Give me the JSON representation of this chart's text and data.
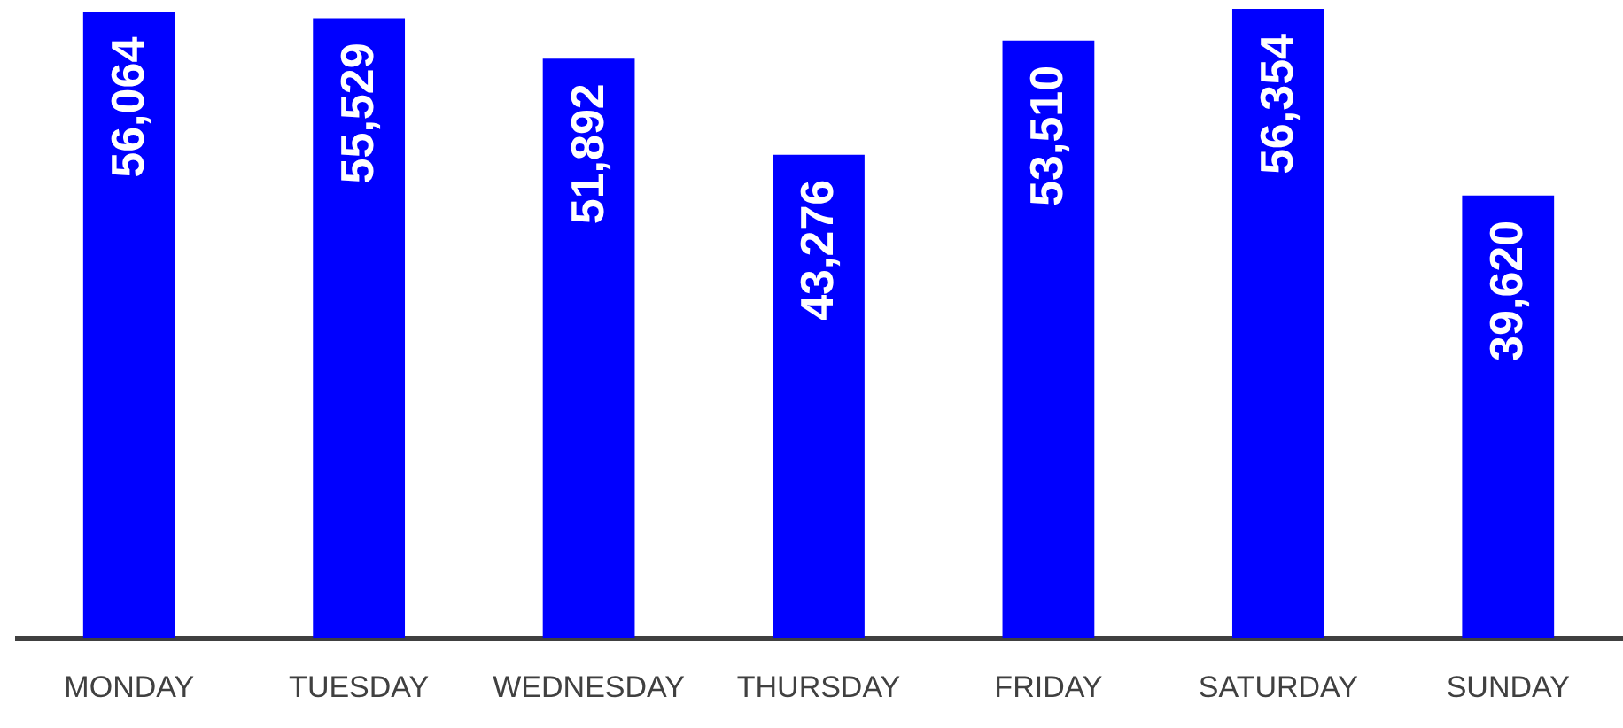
{
  "chart_data": {
    "type": "bar",
    "categories": [
      "MONDAY",
      "TUESDAY",
      "WEDNESDAY",
      "THURSDAY",
      "FRIDAY",
      "SATURDAY",
      "SUNDAY"
    ],
    "values": [
      56064,
      55529,
      51892,
      43276,
      53510,
      56354,
      39620
    ],
    "value_labels": [
      "56,064",
      "55,529",
      "51,892",
      "43,276",
      "53,510",
      "56,354",
      "39,620"
    ],
    "color": "#0000ff",
    "tick_labels": "x"
  }
}
